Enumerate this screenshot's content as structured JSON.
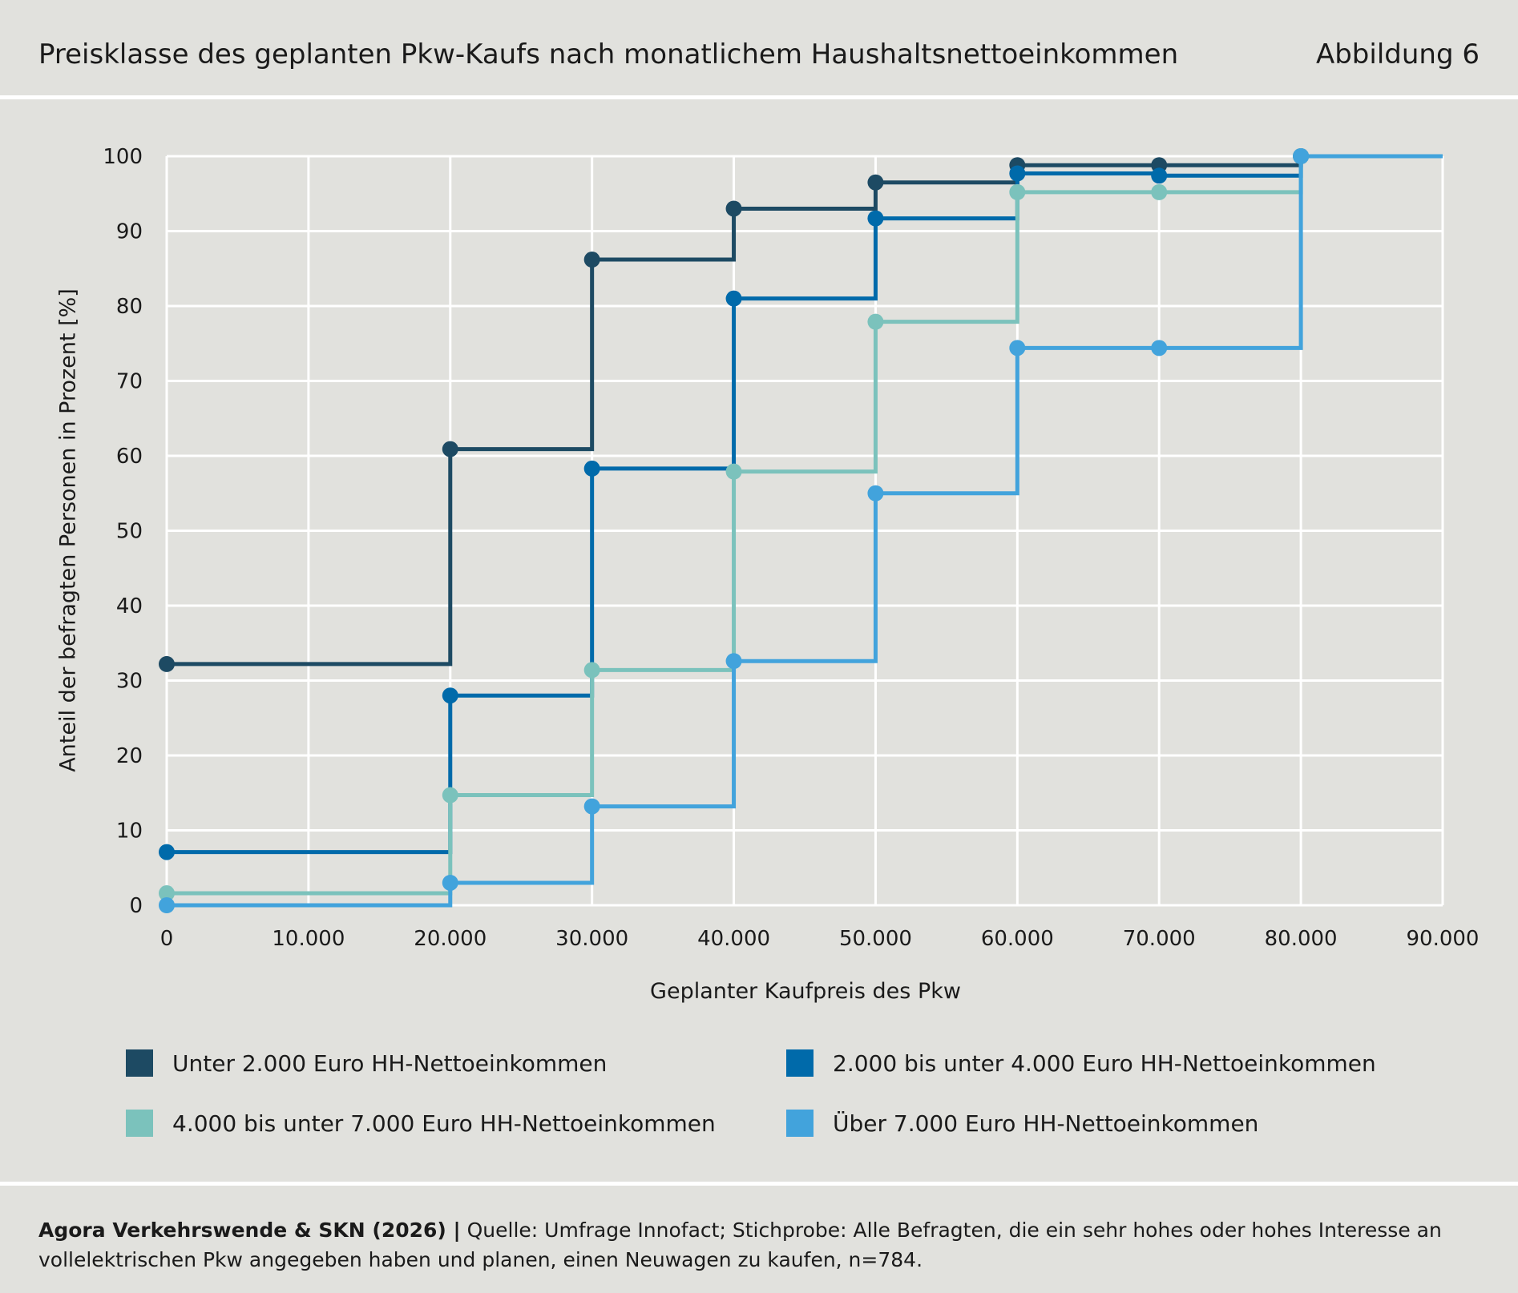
{
  "header": {
    "title": "Preisklasse des geplanten Pkw-Kaufs nach monatlichem Haushaltsnettoeinkommen",
    "figure_label": "Abbildung 6"
  },
  "chart_data": {
    "type": "line",
    "step": "vertical-then-horizontal",
    "xlabel": "Geplanter Kaufpreis des Pkw",
    "ylabel": "Anteil der befragten Personen in Prozent [%]",
    "xlim": [
      0,
      90000
    ],
    "ylim": [
      0,
      100
    ],
    "x_ticks": [
      0,
      10000,
      20000,
      30000,
      40000,
      50000,
      60000,
      70000,
      80000,
      90000
    ],
    "x_tick_labels": [
      "0",
      "10.000",
      "20.000",
      "30.000",
      "40.000",
      "50.000",
      "60.000",
      "70.000",
      "80.000",
      "90.000"
    ],
    "y_ticks": [
      0,
      10,
      20,
      30,
      40,
      50,
      60,
      70,
      80,
      90,
      100
    ],
    "y_tick_labels": [
      "0",
      "10",
      "20",
      "30",
      "40",
      "50",
      "60",
      "70",
      "80",
      "90",
      "100"
    ],
    "grid": true,
    "legend_position": "bottom",
    "x": [
      0,
      20000,
      30000,
      40000,
      50000,
      60000,
      70000,
      80000
    ],
    "series": [
      {
        "name": "Unter 2.000 Euro HH-Nettoeinkommen",
        "color": "#1d4a63",
        "values": [
          32.2,
          60.9,
          86.2,
          93.0,
          96.5,
          98.8,
          98.8,
          100
        ]
      },
      {
        "name": "2.000 bis unter 4.000 Euro HH-Nettoeinkommen",
        "color": "#006aaa",
        "values": [
          7.1,
          28.0,
          58.3,
          81.0,
          91.7,
          97.7,
          97.4,
          100
        ]
      },
      {
        "name": "4.000 bis unter 7.000 Euro HH-Nettoeinkommen",
        "color": "#7bc2bc",
        "values": [
          1.6,
          14.7,
          31.4,
          57.9,
          77.9,
          95.2,
          95.2,
          100
        ]
      },
      {
        "name": "Über 7.000 Euro HH-Nettoeinkommen",
        "color": "#42a3dc",
        "values": [
          0,
          3.0,
          13.2,
          32.6,
          55.0,
          74.4,
          74.4,
          100
        ]
      }
    ],
    "line_end_x": 90000
  },
  "footer": {
    "source_bold": "Agora Verkehrswende & SKN (2026) |",
    "source_text": " Quelle: Umfrage Innofact; Stichprobe: Alle Befragten, die ein sehr hohes oder hohes Interesse an vollelektrischen Pkw angegeben haben und planen, einen Neuwagen zu kaufen, n=784."
  }
}
